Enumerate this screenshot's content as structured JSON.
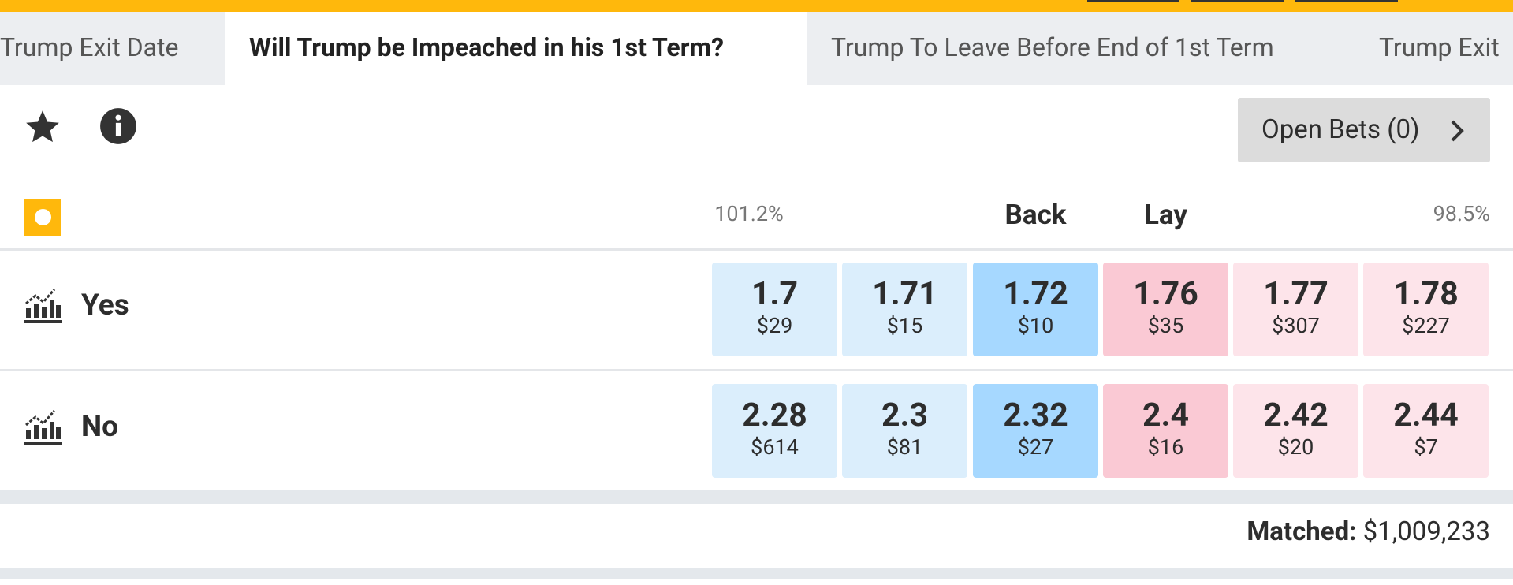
{
  "tabs": [
    "Trump Exit Date",
    "Will Trump be Impeached in his 1st Term?",
    "Trump To Leave Before End of 1st Term",
    "Trump Exit"
  ],
  "active_tab": 1,
  "toolbar": {
    "open_bets": "Open Bets (0)"
  },
  "header": {
    "back_percent": "101.2%",
    "back": "Back",
    "lay": "Lay",
    "lay_percent": "98.5%"
  },
  "runners": [
    {
      "name": "Yes",
      "prices": [
        {
          "odds": "1.7",
          "amount": "$29"
        },
        {
          "odds": "1.71",
          "amount": "$15"
        },
        {
          "odds": "1.72",
          "amount": "$10"
        },
        {
          "odds": "1.76",
          "amount": "$35"
        },
        {
          "odds": "1.77",
          "amount": "$307"
        },
        {
          "odds": "1.78",
          "amount": "$227"
        }
      ]
    },
    {
      "name": "No",
      "prices": [
        {
          "odds": "2.28",
          "amount": "$614"
        },
        {
          "odds": "2.3",
          "amount": "$81"
        },
        {
          "odds": "2.32",
          "amount": "$27"
        },
        {
          "odds": "2.4",
          "amount": "$16"
        },
        {
          "odds": "2.42",
          "amount": "$20"
        },
        {
          "odds": "2.44",
          "amount": "$7"
        }
      ]
    }
  ],
  "matched": {
    "label": "Matched:",
    "value": "$1,009,233"
  }
}
